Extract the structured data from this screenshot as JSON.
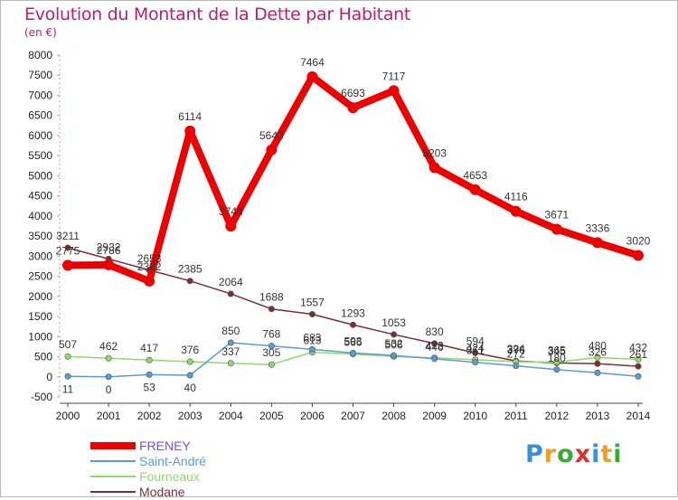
{
  "title": "Evolution du Montant de la Dette par Habitant",
  "unit": "(en €)",
  "logo": {
    "text": "Proxiti",
    "letters": [
      {
        "ch": "P",
        "color": "#3a8fd6"
      },
      {
        "ch": "r",
        "color": "#f0a020"
      },
      {
        "ch": "o",
        "color": "#3aaa35"
      },
      {
        "ch": "x",
        "color": "#e03030"
      },
      {
        "ch": "i",
        "color": "#3a8fd6"
      },
      {
        "ch": "t",
        "color": "#f0a020"
      },
      {
        "ch": "i",
        "color": "#3aaa35"
      }
    ]
  },
  "chart_data": {
    "type": "line",
    "x": [
      "2000",
      "2001",
      "2002",
      "2003",
      "2004",
      "2005",
      "2006",
      "2007",
      "2008",
      "2009",
      "2010",
      "2011",
      "2012",
      "2013",
      "2014"
    ],
    "ylim": [
      -500,
      8000
    ],
    "yticks": [
      -500,
      0,
      500,
      1000,
      1500,
      2000,
      2500,
      3000,
      3500,
      4000,
      4500,
      5000,
      5500,
      6000,
      6500,
      7000,
      7500,
      8000
    ],
    "grid": false,
    "legend_position": "bottom-left",
    "series": [
      {
        "name": "FRENEY",
        "color": "#ee0000",
        "text_color": "#7a4fd8",
        "line_width": 8,
        "values": [
          2775,
          2786,
          2382,
          6114,
          3748,
          5643,
          7464,
          6693,
          7117,
          5203,
          4653,
          4116,
          3671,
          3336,
          3020
        ],
        "labels": [
          "2775",
          "2786",
          "2382",
          "6114",
          "3748",
          "5643",
          "7464",
          "6693",
          "7117",
          "5203",
          "4653",
          "4116",
          "3671",
          "3336",
          "3020"
        ]
      },
      {
        "name": "Saint-André",
        "color": "#5b9bd5",
        "text_color": "#5b9bd5",
        "line_width": 1.5,
        "values": [
          11,
          0,
          53,
          40,
          850,
          768,
          683,
          593,
          532,
          446,
          361,
          272,
          180,
          101,
          11
        ],
        "labels": [
          "11",
          "0",
          "53",
          "40",
          "850",
          "768",
          "683",
          "593",
          "532",
          "446",
          "361",
          "272",
          "180",
          "",
          ""
        ]
      },
      {
        "name": "Fourneaux",
        "color": "#90d96a",
        "text_color": "#90d96a",
        "line_width": 1.5,
        "values": [
          507,
          462,
          417,
          376,
          337,
          305,
          613,
          566,
          506,
          473,
          424,
          376,
          365,
          480,
          432
        ],
        "labels": [
          "507",
          "462",
          "417",
          "376",
          "337",
          "305",
          "613",
          "566",
          "506",
          "473",
          "424",
          "376",
          "365",
          "480",
          "432"
        ]
      },
      {
        "name": "Modane",
        "color": "#7a2e35",
        "text_color": "#7a2e35",
        "line_width": 1.5,
        "values": [
          3211,
          2932,
          2653,
          2385,
          2064,
          1688,
          1557,
          1293,
          1053,
          830,
          594,
          394,
          345,
          326,
          261
        ],
        "labels": [
          "3211",
          "2932",
          "2653",
          "2385",
          "2064",
          "1688",
          "1557",
          "1293",
          "1053",
          "830",
          "594",
          "394",
          "345",
          "326",
          "261"
        ]
      }
    ]
  }
}
